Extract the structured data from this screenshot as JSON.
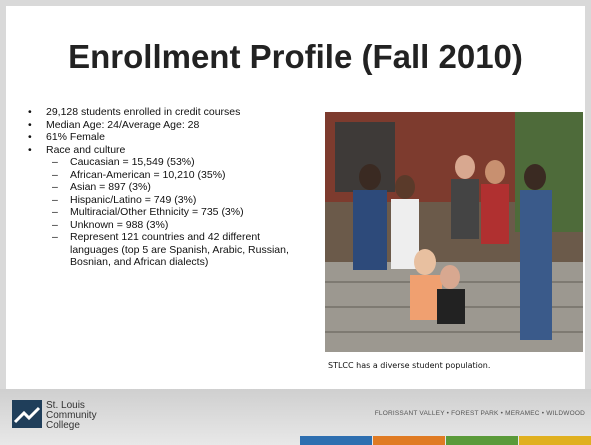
{
  "title": "Enrollment Profile (Fall 2010)",
  "bullets": [
    {
      "text": "29,128 students enrolled in credit courses"
    },
    {
      "text": "Median Age: 24/Average Age: 28"
    },
    {
      "text": "61% Female"
    },
    {
      "text": "Race and culture",
      "items": [
        "Caucasian = 15,549 (53%)",
        "African-American = 10,210 (35%)",
        "Asian = 897 (3%)",
        "Hispanic/Latino = 749 (3%)",
        "Multiracial/Other Ethnicity = 735 (3%)",
        "Unknown = 988 (3%)",
        "Represent 121 countries and 42 different languages (top 5 are Spanish,  Arabic, Russian, Bosnian, and African dialects)"
      ]
    }
  ],
  "photo_caption": "STLCC has a diverse student population.",
  "footer": {
    "logo": [
      "St. Louis",
      "Community",
      "College"
    ],
    "campuses": [
      "FLORISSANT VALLEY",
      "FOREST PARK",
      "MERAMEC",
      "WILDWOOD"
    ]
  }
}
